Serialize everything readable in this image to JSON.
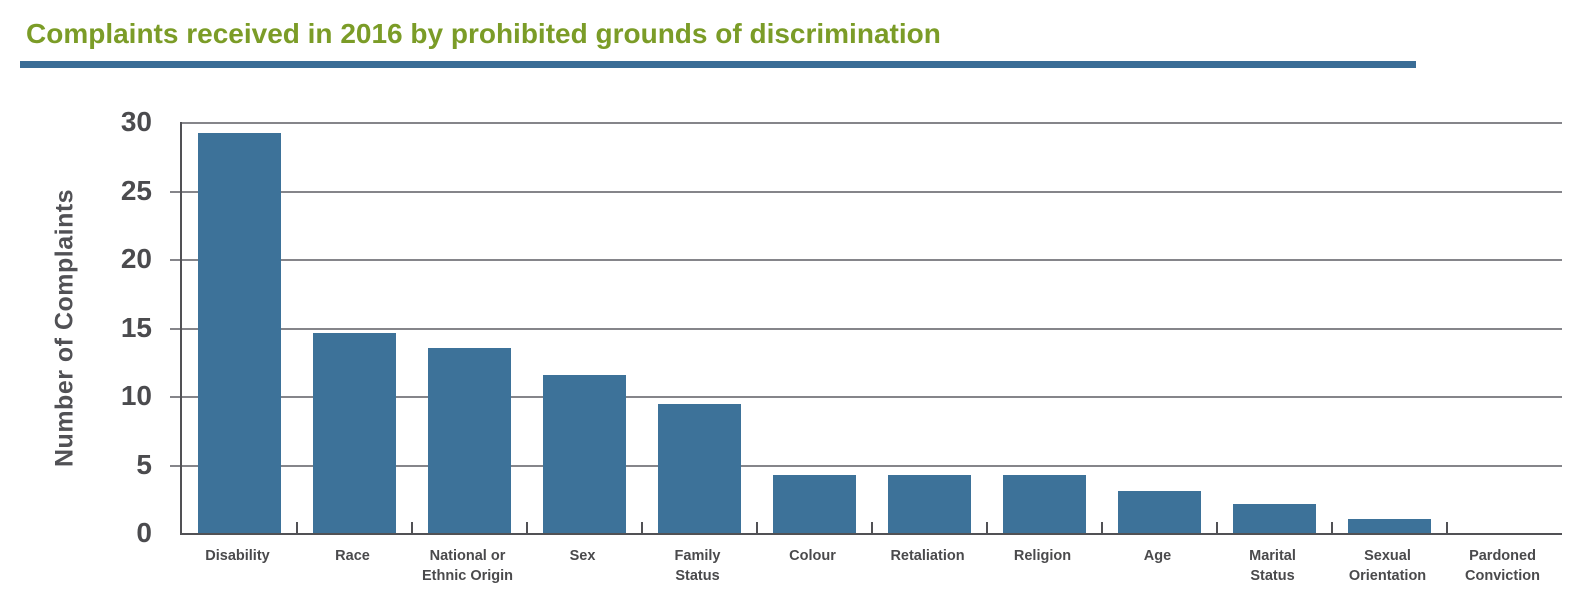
{
  "title": "Complaints received in 2016 by prohibited grounds of discrimination",
  "colors": {
    "title": "#7b9c27",
    "rule": "#3a6d96",
    "bar": "#3d7299",
    "gridline": "#85858a",
    "axis": "#515155",
    "label_text": "#4a4a4c"
  },
  "chart_data": {
    "type": "bar",
    "title": "Complaints received in 2016 by prohibited grounds of discrimination",
    "xlabel": "",
    "ylabel": "Number of Complaints",
    "ylim": [
      0,
      30
    ],
    "yticks": [
      0,
      5,
      10,
      15,
      20,
      25,
      30
    ],
    "grid": "horizontal",
    "legend": "none",
    "categories": [
      "Disability",
      "Race",
      "National or\nEthnic Origin",
      "Sex",
      "Family\nStatus",
      "Colour",
      "Retaliation",
      "Religion",
      "Age",
      "Marital\nStatus",
      "Sexual\nOrientation",
      "Pardoned\nConviction"
    ],
    "values": [
      29.2,
      14.6,
      13.5,
      11.5,
      9.4,
      4.2,
      4.2,
      4.2,
      3.1,
      2.1,
      1.0,
      0
    ]
  }
}
